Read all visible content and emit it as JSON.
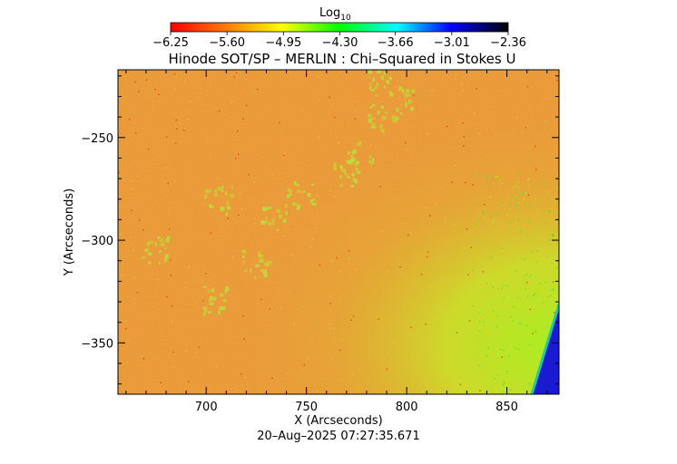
{
  "title": "Hinode SOT/SP – MERLIN : Chi–Squared in Stokes U",
  "timestamp": "20–Aug–2025 07:27:35.671",
  "colorbar": {
    "label_main": "Log",
    "label_sub": "10",
    "ticks": [
      "−6.25",
      "−5.60",
      "−4.95",
      "−4.30",
      "−3.66",
      "−3.01",
      "−2.36"
    ],
    "tick_values": [
      -6.25,
      -5.6,
      -4.95,
      -4.3,
      -3.66,
      -3.01,
      -2.36
    ],
    "range": [
      -6.25,
      -2.36
    ],
    "colors": [
      "#ff0000",
      "#ff8000",
      "#ffff00",
      "#00ff00",
      "#00ffff",
      "#0000ff",
      "#000000"
    ]
  },
  "chart_data": {
    "type": "heatmap",
    "title": "Hinode SOT/SP – MERLIN : Chi–Squared in Stokes U",
    "xlabel": "X (Arcseconds)",
    "ylabel": "Y (Arcseconds)",
    "xlim": [
      656,
      876
    ],
    "ylim": [
      -375,
      -217
    ],
    "xticks": [
      700,
      750,
      800,
      850
    ],
    "xtick_labels": [
      "700",
      "750",
      "800",
      "850"
    ],
    "yticks": [
      -250,
      -300,
      -350
    ],
    "ytick_labels": [
      "−250",
      "−300",
      "−350"
    ],
    "colorbar_label": "Log10",
    "value_range": [
      -6.25,
      -2.36
    ],
    "background_level": -5.55,
    "features": [
      {
        "description_level": -4.9,
        "region": "lower-right limb",
        "level": -4.9
      },
      {
        "region": "off-limb corner",
        "level": -3.3
      }
    ]
  }
}
